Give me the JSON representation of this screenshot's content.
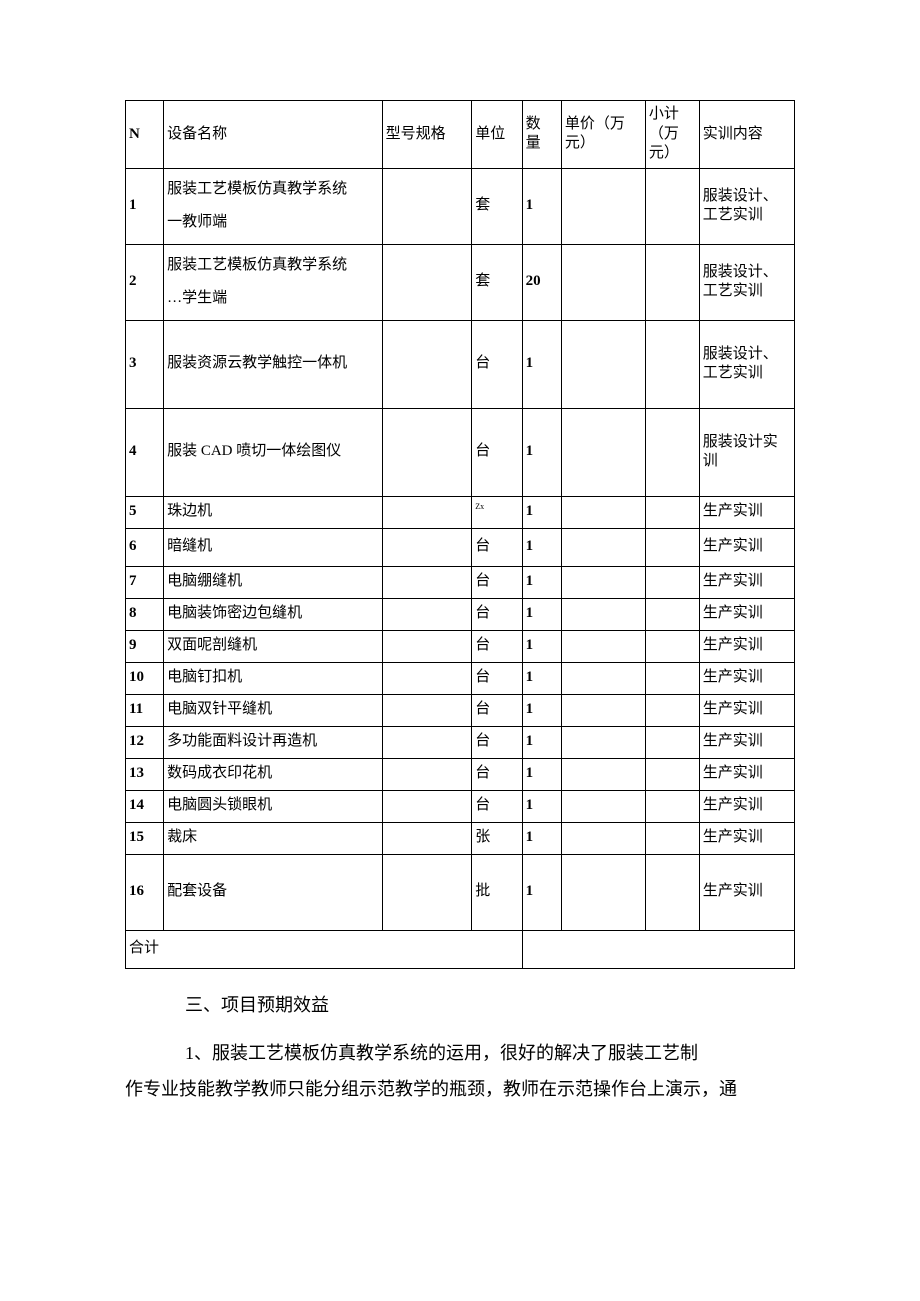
{
  "table": {
    "headers": {
      "n": "N",
      "name": "设备名称",
      "model": "型号规格",
      "unit": "单位",
      "qty": "数 量",
      "price": "单价（万元）",
      "subtotal": "小计（万元）",
      "content": "实训内容"
    },
    "rows": [
      {
        "n": "1",
        "name": "服装工艺模板仿真教学系统一教师端",
        "model": "",
        "unit": "套",
        "qty": "1",
        "price": "",
        "subtotal": "",
        "content": "服装设计、工艺实训"
      },
      {
        "n": "2",
        "name": "服装工艺模板仿真教学系统…学生端",
        "model": "",
        "unit": "套",
        "qty": "20",
        "price": "",
        "subtotal": "",
        "content": "服装设计、工艺实训"
      },
      {
        "n": "3",
        "name": "服装资源云教学触控一体机",
        "model": "",
        "unit": "台",
        "qty": "1",
        "price": "",
        "subtotal": "",
        "content": "服装设计、工艺实训"
      },
      {
        "n": "4",
        "name": "服装 CAD 喷切一体绘图仪",
        "model": "",
        "unit": "台",
        "qty": "1",
        "price": "",
        "subtotal": "",
        "content": "服装设计实训"
      },
      {
        "n": "5",
        "name": "珠边机",
        "model": "",
        "unit": "Zx",
        "qty": "1",
        "price": "",
        "subtotal": "",
        "content": "生产实训"
      },
      {
        "n": "6",
        "name": "暗缝机",
        "model": "",
        "unit": "台",
        "qty": "1",
        "price": "",
        "subtotal": "",
        "content": "生产实训"
      },
      {
        "n": "7",
        "name": "电脑绷缝机",
        "model": "",
        "unit": "台",
        "qty": "1",
        "price": "",
        "subtotal": "",
        "content": "生产实训"
      },
      {
        "n": "8",
        "name": "电脑装饰密边包缝机",
        "model": "",
        "unit": "台",
        "qty": "1",
        "price": "",
        "subtotal": "",
        "content": "生产实训"
      },
      {
        "n": "9",
        "name": "双面呢剖缝机",
        "model": "",
        "unit": "台",
        "qty": "1",
        "price": "",
        "subtotal": "",
        "content": "生产实训"
      },
      {
        "n": "10",
        "name": "电脑钉扣机",
        "model": "",
        "unit": "台",
        "qty": "1",
        "price": "",
        "subtotal": "",
        "content": "生产实训"
      },
      {
        "n": "11",
        "name": "电脑双针平缝机",
        "model": "",
        "unit": "台",
        "qty": "1",
        "price": "",
        "subtotal": "",
        "content": "生产实训"
      },
      {
        "n": "12",
        "name": "多功能面料设计再造机",
        "model": "",
        "unit": "台",
        "qty": "1",
        "price": "",
        "subtotal": "",
        "content": "生产实训"
      },
      {
        "n": "13",
        "name": "数码成衣印花机",
        "model": "",
        "unit": "台",
        "qty": "1",
        "price": "",
        "subtotal": "",
        "content": "生产实训"
      },
      {
        "n": "14",
        "name": "电脑圆头锁眼机",
        "model": "",
        "unit": "台",
        "qty": "1",
        "price": "",
        "subtotal": "",
        "content": "生产实训"
      },
      {
        "n": "15",
        "name": "裁床",
        "model": "",
        "unit": "张",
        "qty": "1",
        "price": "",
        "subtotal": "",
        "content": "生产实训"
      },
      {
        "n": "16",
        "name": "配套设备",
        "model": "",
        "unit": "批",
        "qty": "1",
        "price": "",
        "subtotal": "",
        "content": "生产实训"
      }
    ],
    "summary_label": "合计"
  },
  "section_heading": "三、项目预期效益",
  "paragraph_line1": "1、服装工艺模板仿真教学系统的运用，很好的解决了服装工艺制",
  "paragraph_line2": "作专业技能教学教师只能分组示范教学的瓶颈，教师在示范操作台上演示，通",
  "row_height_classes": [
    "h-tall",
    "h-tall",
    "h-taller",
    "h-taller",
    "h-short",
    "h-med",
    "h-short",
    "h-short",
    "h-short",
    "h-short",
    "h-short",
    "h-short",
    "h-short",
    "h-short",
    "h-short",
    "h-tall"
  ],
  "unit_tiny_rows": [
    4
  ],
  "name_double_line_rows": [
    0,
    1
  ]
}
